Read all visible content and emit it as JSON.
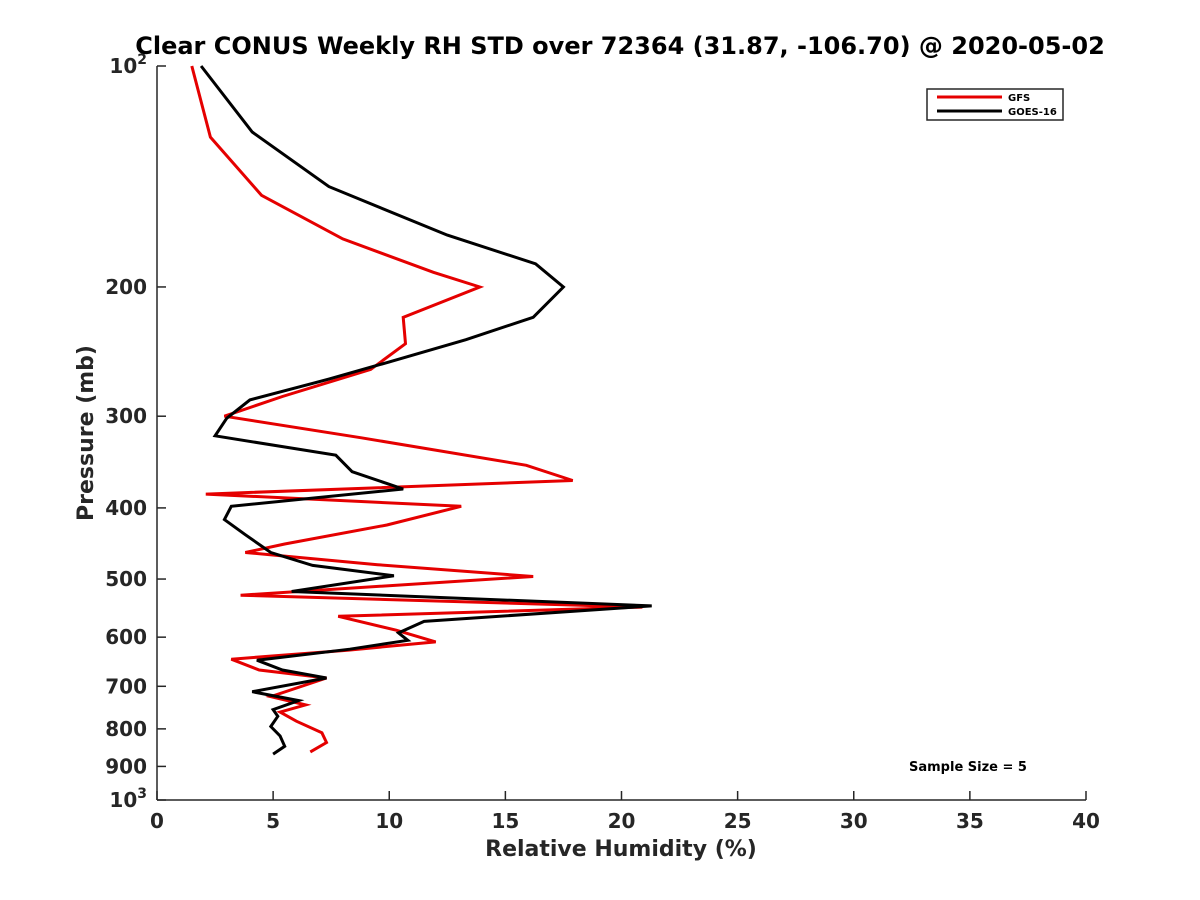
{
  "chart_data": {
    "type": "line",
    "title": "Clear CONUS Weekly RH STD over 72364 (31.87, -106.70) @ 2020-05-02",
    "xlabel": "Relative Humidity (%)",
    "ylabel": "Pressure (mb)",
    "xlim": [
      0,
      40
    ],
    "ylim": [
      100,
      1000
    ],
    "y_scale": "log",
    "y_reversed": true,
    "x_ticks": [
      0,
      5,
      10,
      15,
      20,
      25,
      30,
      35,
      40
    ],
    "y_ticks": [
      {
        "value": 100,
        "label": "10",
        "exp": "2"
      },
      {
        "value": 200,
        "label": "200"
      },
      {
        "value": 300,
        "label": "300"
      },
      {
        "value": 400,
        "label": "400"
      },
      {
        "value": 500,
        "label": "500"
      },
      {
        "value": 600,
        "label": "600"
      },
      {
        "value": 700,
        "label": "700"
      },
      {
        "value": 800,
        "label": "800"
      },
      {
        "value": 900,
        "label": "900"
      },
      {
        "value": 1000,
        "label": "10",
        "exp": "3"
      }
    ],
    "grid": false,
    "legend_position": "top-right",
    "annotation": "Sample Size = 5",
    "series": [
      {
        "name": "GFS",
        "color": "#e50000",
        "points": [
          [
            1.5,
            100
          ],
          [
            2.3,
            125
          ],
          [
            4.5,
            150
          ],
          [
            8.0,
            172
          ],
          [
            11.9,
            191
          ],
          [
            13.9,
            200
          ],
          [
            10.6,
            220
          ],
          [
            10.7,
            239
          ],
          [
            9.2,
            259
          ],
          [
            5.4,
            282
          ],
          [
            2.9,
            300
          ],
          [
            8.8,
            321
          ],
          [
            15.9,
            350
          ],
          [
            17.9,
            367
          ],
          [
            2.1,
            383
          ],
          [
            13.1,
            398
          ],
          [
            9.9,
            422
          ],
          [
            5.5,
            448
          ],
          [
            3.8,
            460
          ],
          [
            9.5,
            478
          ],
          [
            16.2,
            496
          ],
          [
            3.6,
            526
          ],
          [
            20.9,
            546
          ],
          [
            7.8,
            562
          ],
          [
            10.3,
            587
          ],
          [
            12.0,
            609
          ],
          [
            8.2,
            625
          ],
          [
            3.2,
            643
          ],
          [
            4.4,
            665
          ],
          [
            7.3,
            682
          ],
          [
            4.9,
            723
          ],
          [
            6.4,
            742
          ],
          [
            5.3,
            759
          ],
          [
            6.0,
            781
          ],
          [
            7.1,
            810
          ],
          [
            7.3,
            835
          ],
          [
            6.6,
            860
          ]
        ]
      },
      {
        "name": "GOES-16",
        "color": "#000000",
        "points": [
          [
            1.9,
            100
          ],
          [
            4.1,
            123
          ],
          [
            7.4,
            146
          ],
          [
            12.5,
            170
          ],
          [
            16.3,
            186
          ],
          [
            17.5,
            200
          ],
          [
            16.2,
            220
          ],
          [
            13.3,
            236
          ],
          [
            10.0,
            253
          ],
          [
            7.4,
            267
          ],
          [
            4.0,
            285
          ],
          [
            3.0,
            302
          ],
          [
            2.5,
            319
          ],
          [
            7.7,
            339
          ],
          [
            8.4,
            357
          ],
          [
            10.6,
            377
          ],
          [
            3.2,
            398
          ],
          [
            2.9,
            415
          ],
          [
            3.8,
            435
          ],
          [
            4.9,
            460
          ],
          [
            6.7,
            479
          ],
          [
            10.2,
            495
          ],
          [
            5.8,
            520
          ],
          [
            21.3,
            544
          ],
          [
            11.5,
            571
          ],
          [
            10.4,
            592
          ],
          [
            10.8,
            606
          ],
          [
            8.3,
            623
          ],
          [
            4.3,
            645
          ],
          [
            5.4,
            665
          ],
          [
            7.3,
            682
          ],
          [
            4.1,
            712
          ],
          [
            6.1,
            732
          ],
          [
            5.0,
            753
          ],
          [
            5.2,
            769
          ],
          [
            4.9,
            794
          ],
          [
            5.3,
            818
          ],
          [
            5.5,
            845
          ],
          [
            5.0,
            866
          ]
        ]
      }
    ]
  }
}
